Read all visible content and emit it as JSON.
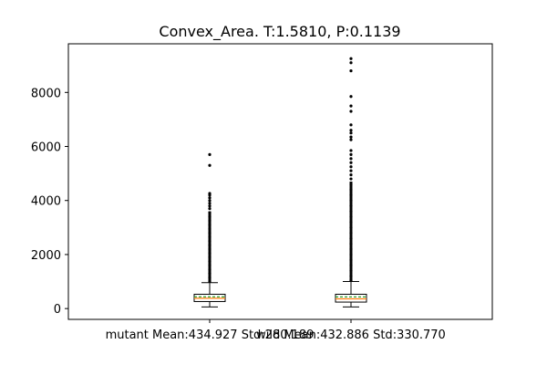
{
  "chart_data": {
    "type": "box",
    "title": "Convex_Area. T:1.5810, P:0.1139",
    "xlabel": "",
    "ylabel": "",
    "ylim": [
      -400,
      9800
    ],
    "yticks": [
      0,
      2000,
      4000,
      6000,
      8000
    ],
    "grid": false,
    "legend": "none",
    "categories": [
      "mutant Mean:434.927 Std:280.189",
      "wild Mean:432.886 Std:330.770"
    ],
    "series": [
      {
        "label": "mutant Mean:434.927 Std:280.189",
        "mean": 434.927,
        "std": 280.189,
        "whisker_low": 60,
        "q1": 260,
        "median": 380,
        "q3": 530,
        "whisker_high": 960,
        "outlier_band": [
          960,
          3600
        ],
        "outliers": [
          1000,
          1150,
          1300,
          1450,
          1600,
          1750,
          1900,
          2050,
          2200,
          2350,
          2500,
          2650,
          2800,
          2950,
          3100,
          3250,
          3400,
          3550,
          3700,
          3800,
          3900,
          4000,
          4100,
          4200,
          4260,
          5300,
          5700
        ]
      },
      {
        "label": "wild Mean:432.886 Std:330.770",
        "mean": 432.886,
        "std": 330.77,
        "whisker_low": 60,
        "q1": 240,
        "median": 360,
        "q3": 530,
        "whisker_high": 1000,
        "outlier_band": [
          1000,
          4700
        ],
        "outliers": [
          1050,
          1200,
          1400,
          1600,
          1800,
          2000,
          2200,
          2400,
          2600,
          2800,
          3000,
          3200,
          3400,
          3600,
          3800,
          4000,
          4200,
          4400,
          4600,
          4800,
          4950,
          5100,
          5250,
          5400,
          5550,
          5700,
          5850,
          6250,
          6350,
          6500,
          6600,
          6800,
          7300,
          7500,
          7850,
          8800,
          9100,
          9250
        ]
      }
    ],
    "colors": {
      "box": "#000000",
      "median": "#ff7f0e",
      "mean": "#2ca02c",
      "box_fill": "#ffffff",
      "outlier": "#000000"
    }
  }
}
